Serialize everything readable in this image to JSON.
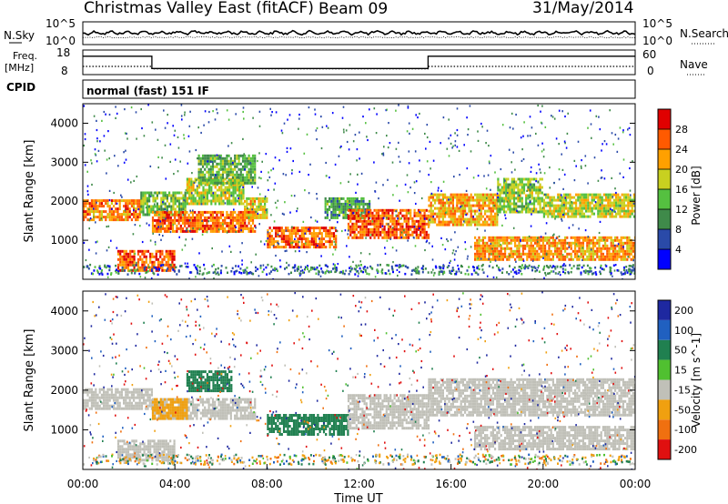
{
  "header": {
    "title": "Christmas Valley East (fitACF)",
    "beam": "Beam 09",
    "date": "31/May/2014"
  },
  "left_labels": {
    "nsky": "N.Sky",
    "freq_line1": "Freq.",
    "freq_line2": "[MHz]",
    "cpid": "CPID"
  },
  "right_labels": {
    "nsearch": "N.Search",
    "nave": "Nave"
  },
  "noise_panel": {
    "left_ticks": [
      "10^5",
      "10^0"
    ],
    "right_ticks": [
      "10^5",
      "10^0"
    ]
  },
  "freq_panel": {
    "left_ticks": [
      "18",
      "8"
    ],
    "right_ticks": [
      "60",
      "0"
    ],
    "freq_series": {
      "x_hours": [
        0,
        3,
        3,
        15,
        15,
        24
      ],
      "y_mhz": [
        15.5,
        15.5,
        10.5,
        10.5,
        15.5,
        15.5
      ]
    },
    "nave_series": {
      "x_hours": [
        0,
        3,
        3,
        15,
        15,
        24
      ],
      "y": [
        20,
        20,
        14,
        14,
        20,
        20
      ]
    }
  },
  "cpid_text": "normal (fast) 151 IF",
  "colors": {
    "power": [
      "#0000ff",
      "#2a4aa8",
      "#3f8a4a",
      "#55c040",
      "#c8d020",
      "#ffa000",
      "#ff5a00",
      "#e00000"
    ],
    "velocity": [
      "#1e28a0",
      "#2060c0",
      "#208050",
      "#50c030",
      "#c0c0b8",
      "#f0a010",
      "#f07010",
      "#e01010"
    ]
  },
  "chart_data": [
    {
      "type": "heatmap",
      "name": "power",
      "ylabel": "Slant Range [km]",
      "xlim": [
        0,
        24
      ],
      "ylim": [
        0,
        4500
      ],
      "y_ticks": [
        "1000",
        "2000",
        "3000",
        "4000"
      ],
      "colorbar": {
        "label": "Power [dB]",
        "ticks": [
          "4",
          "8",
          "12",
          "16",
          "20",
          "24",
          "28"
        ],
        "range": [
          0,
          32
        ]
      },
      "regions": [
        {
          "x_hours": [
            0,
            2.5
          ],
          "y_km": [
            1550,
            2050
          ],
          "value_db": 24
        },
        {
          "x_hours": [
            1.5,
            4
          ],
          "y_km": [
            200,
            750
          ],
          "value_db": 26
        },
        {
          "x_hours": [
            2.5,
            4.5
          ],
          "y_km": [
            1650,
            2250
          ],
          "value_db": 14
        },
        {
          "x_hours": [
            4.5,
            7
          ],
          "y_km": [
            1950,
            2600
          ],
          "value_db": 17
        },
        {
          "x_hours": [
            3,
            7.5
          ],
          "y_km": [
            1250,
            1750
          ],
          "value_db": 25
        },
        {
          "x_hours": [
            5,
            7.5
          ],
          "y_km": [
            2500,
            3200
          ],
          "value_db": 13
        },
        {
          "x_hours": [
            7,
            8
          ],
          "y_km": [
            1600,
            2100
          ],
          "value_db": 20
        },
        {
          "x_hours": [
            8,
            11
          ],
          "y_km": [
            850,
            1350
          ],
          "value_db": 25
        },
        {
          "x_hours": [
            10.5,
            12.5
          ],
          "y_km": [
            1600,
            2100
          ],
          "value_db": 12
        },
        {
          "x_hours": [
            11.5,
            15
          ],
          "y_km": [
            1050,
            1800
          ],
          "value_db": 26
        },
        {
          "x_hours": [
            15,
            18
          ],
          "y_km": [
            1400,
            2200
          ],
          "value_db": 22
        },
        {
          "x_hours": [
            18,
            20
          ],
          "y_km": [
            1700,
            2600
          ],
          "value_db": 16
        },
        {
          "x_hours": [
            20,
            24
          ],
          "y_km": [
            1600,
            2200
          ],
          "value_db": 18
        },
        {
          "x_hours": [
            17,
            24
          ],
          "y_km": [
            500,
            1100
          ],
          "value_db": 23
        }
      ]
    },
    {
      "type": "heatmap",
      "name": "velocity",
      "xlabel": "Time UT",
      "ylabel": "Slant Range [km]",
      "xlim": [
        0,
        24
      ],
      "ylim": [
        0,
        4500
      ],
      "x_ticks": [
        "00:00",
        "04:00",
        "08:00",
        "12:00",
        "16:00",
        "20:00",
        "00:00"
      ],
      "y_ticks": [
        "1000",
        "2000",
        "3000",
        "4000"
      ],
      "colorbar": {
        "label": "Velocity [m s^-1]",
        "ticks": [
          "200",
          "100",
          "50",
          "15",
          "-15",
          "-50",
          "-100",
          "-200"
        ]
      },
      "regions": [
        {
          "x_hours": [
            0,
            3
          ],
          "y_km": [
            1550,
            2050
          ],
          "value_ms": 0
        },
        {
          "x_hours": [
            1.5,
            4
          ],
          "y_km": [
            200,
            750
          ],
          "value_ms": 0
        },
        {
          "x_hours": [
            3,
            7.5
          ],
          "y_km": [
            1250,
            1800
          ],
          "value_ms": 0
        },
        {
          "x_hours": [
            4.5,
            6.5
          ],
          "y_km": [
            1950,
            2500
          ],
          "value_ms": 40
        },
        {
          "x_hours": [
            3,
            4.5
          ],
          "y_km": [
            1300,
            1800
          ],
          "value_ms": -30
        },
        {
          "x_hours": [
            8,
            11.5
          ],
          "y_km": [
            850,
            1400
          ],
          "value_ms": 40
        },
        {
          "x_hours": [
            11.5,
            15
          ],
          "y_km": [
            1050,
            1900
          ],
          "value_ms": 0
        },
        {
          "x_hours": [
            15,
            24
          ],
          "y_km": [
            1400,
            2300
          ],
          "value_ms": 0
        },
        {
          "x_hours": [
            17,
            24
          ],
          "y_km": [
            500,
            1100
          ],
          "value_ms": 0
        }
      ]
    }
  ]
}
